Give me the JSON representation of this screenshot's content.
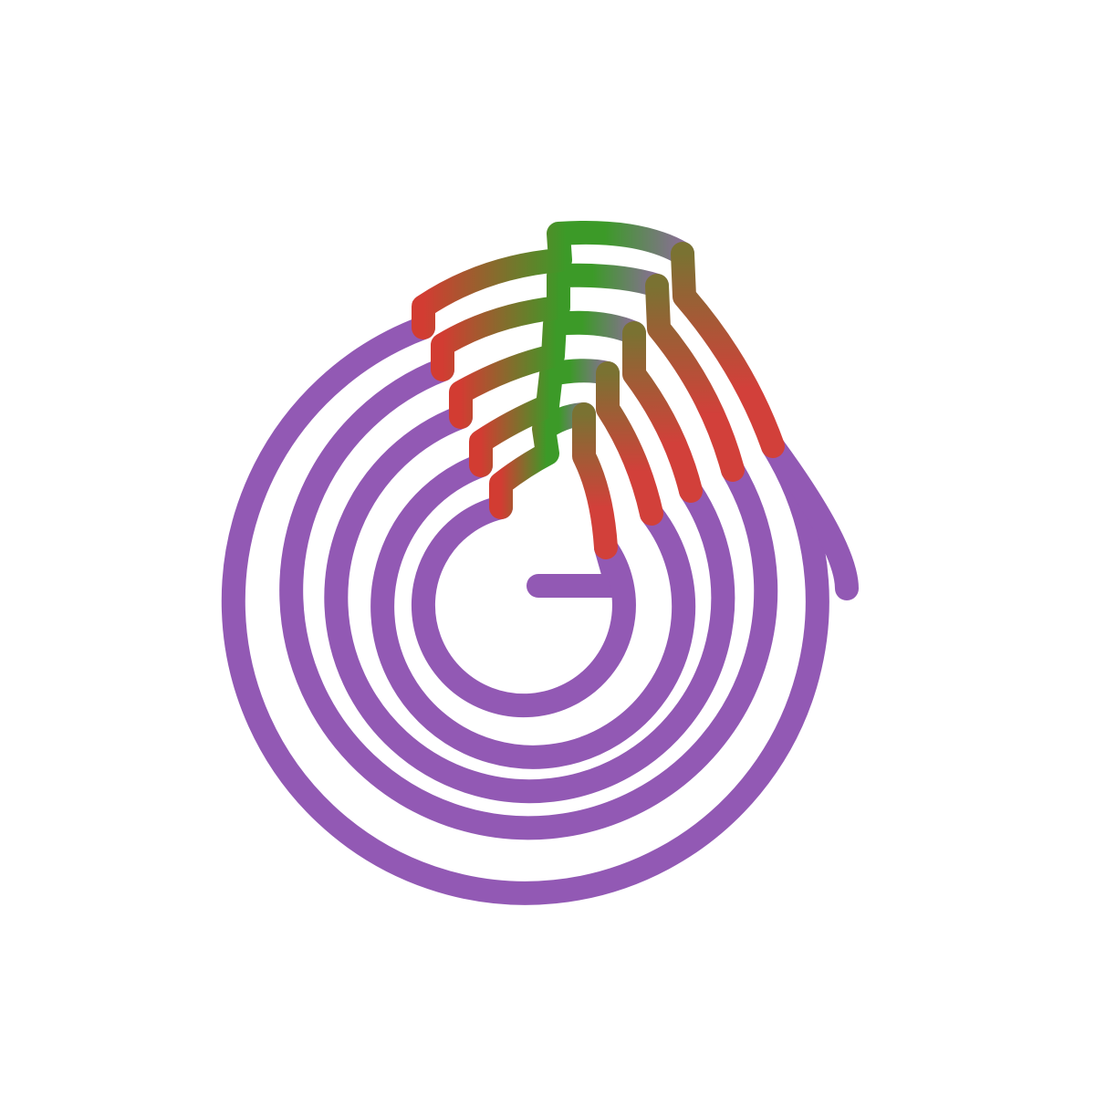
{
  "figure": {
    "kind": "spiral-logo",
    "ring_count": 6,
    "colors": {
      "background": "#ffffff",
      "spiral": "#9259b4",
      "tail_start": "#d23c32",
      "tail_mid": "#3c9a28",
      "tail_end": "#8a6e96",
      "descender_top": "#7a7232",
      "descender_bottom": "#d2403a"
    },
    "icons": [
      "spiral-icon"
    ]
  }
}
